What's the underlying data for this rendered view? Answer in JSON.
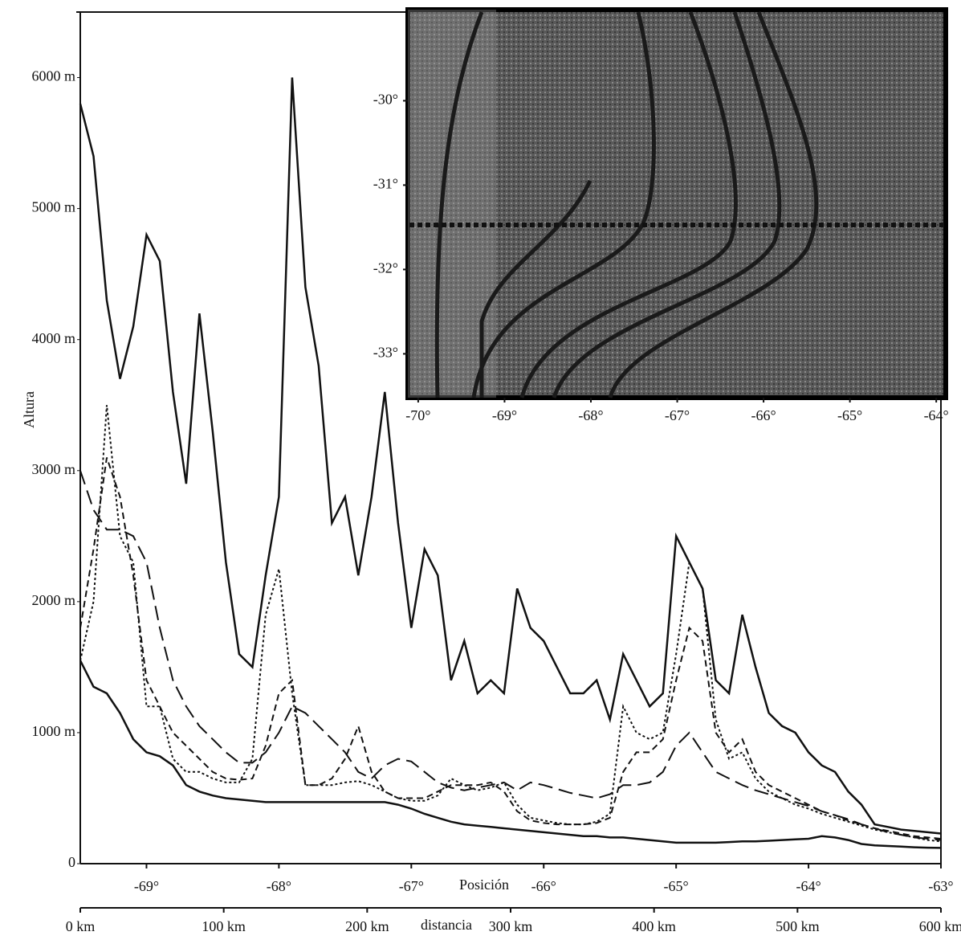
{
  "chart_data": {
    "type": "line",
    "y_label": "Altura",
    "x_label": "Posición",
    "x2_label": "distancia",
    "x": [
      -69.5,
      -69.4,
      -69.3,
      -69.2,
      -69.1,
      -69.0,
      -68.9,
      -68.8,
      -68.7,
      -68.6,
      -68.5,
      -68.4,
      -68.3,
      -68.2,
      -68.1,
      -68.0,
      -67.9,
      -67.8,
      -67.7,
      -67.6,
      -67.5,
      -67.4,
      -67.3,
      -67.2,
      -67.1,
      -67.0,
      -66.9,
      -66.8,
      -66.7,
      -66.6,
      -66.5,
      -66.4,
      -66.3,
      -66.2,
      -66.1,
      -66.0,
      -65.9,
      -65.8,
      -65.7,
      -65.6,
      -65.5,
      -65.4,
      -65.3,
      -65.2,
      -65.1,
      -65.0,
      -64.9,
      -64.8,
      -64.7,
      -64.6,
      -64.5,
      -64.4,
      -64.3,
      -64.2,
      -64.1,
      -64.0,
      -63.9,
      -63.8,
      -63.7,
      -63.6,
      -63.5,
      -63.4,
      -63.3,
      -63.2,
      -63.1,
      -63.0
    ],
    "series": [
      {
        "color": "#111111",
        "dash": "solid",
        "values": [
          5800,
          5400,
          4300,
          3700,
          4100,
          4800,
          4600,
          3600,
          2900,
          4200,
          3300,
          2300,
          1600,
          1500,
          2200,
          2800,
          6000,
          4400,
          3800,
          2600,
          2800,
          2200,
          2800,
          3600,
          2600,
          1800,
          2400,
          2200,
          1400,
          1700,
          1300,
          1400,
          1300,
          2100,
          1800,
          1700,
          1500,
          1300,
          1300,
          1400,
          1100,
          1600,
          1400,
          1200,
          1300,
          2500,
          2300,
          2100,
          1400,
          1300,
          1900,
          1500,
          1150,
          1050,
          1000,
          850,
          750,
          700,
          550,
          450,
          300,
          280,
          260,
          250,
          240,
          230
        ]
      },
      {
        "color": "#111111",
        "dash": "long-dash",
        "values": [
          3000,
          2700,
          2550,
          2550,
          2500,
          2300,
          1800,
          1400,
          1200,
          1050,
          950,
          850,
          770,
          770,
          850,
          1000,
          1200,
          1150,
          1050,
          950,
          850,
          700,
          650,
          750,
          800,
          780,
          700,
          620,
          580,
          560,
          580,
          600,
          620,
          560,
          620,
          600,
          570,
          540,
          520,
          500,
          530,
          600,
          600,
          620,
          700,
          900,
          1000,
          850,
          700,
          650,
          600,
          560,
          530,
          500,
          470,
          440,
          400,
          370,
          340,
          300,
          270,
          240,
          220,
          200,
          190,
          180
        ]
      },
      {
        "color": "#111111",
        "dash": "dash",
        "values": [
          1800,
          2400,
          3100,
          2800,
          2200,
          1400,
          1200,
          1000,
          900,
          800,
          700,
          650,
          640,
          650,
          900,
          1300,
          1400,
          600,
          600,
          650,
          800,
          1050,
          700,
          550,
          500,
          500,
          500,
          550,
          600,
          600,
          600,
          620,
          550,
          400,
          330,
          310,
          300,
          300,
          300,
          310,
          350,
          700,
          850,
          850,
          950,
          1400,
          1800,
          1700,
          1000,
          850,
          950,
          700,
          600,
          550,
          500,
          450,
          400,
          370,
          330,
          300,
          270,
          250,
          230,
          210,
          200,
          190
        ]
      },
      {
        "color": "#111111",
        "dash": "dot",
        "values": [
          1550,
          2000,
          3500,
          2500,
          2300,
          1200,
          1200,
          800,
          700,
          700,
          650,
          620,
          620,
          800,
          1900,
          2250,
          1300,
          600,
          600,
          600,
          620,
          630,
          600,
          550,
          500,
          480,
          480,
          520,
          650,
          600,
          560,
          580,
          620,
          450,
          350,
          330,
          310,
          300,
          300,
          320,
          380,
          1200,
          1000,
          950,
          1000,
          1600,
          2300,
          2100,
          1100,
          800,
          850,
          650,
          550,
          500,
          450,
          420,
          380,
          350,
          320,
          290,
          260,
          240,
          220,
          200,
          180,
          170
        ]
      },
      {
        "color": "#111111",
        "dash": "solid",
        "values": [
          1550,
          1350,
          1300,
          1150,
          950,
          850,
          820,
          750,
          600,
          550,
          520,
          500,
          490,
          480,
          470,
          470,
          470,
          470,
          470,
          470,
          470,
          470,
          470,
          470,
          450,
          420,
          380,
          350,
          320,
          300,
          290,
          280,
          270,
          260,
          250,
          240,
          230,
          220,
          210,
          210,
          200,
          200,
          190,
          180,
          170,
          160,
          160,
          160,
          160,
          165,
          170,
          170,
          175,
          180,
          185,
          190,
          210,
          200,
          180,
          150,
          140,
          135,
          130,
          125,
          122,
          120
        ]
      }
    ],
    "xlim": [
      -69.5,
      -63
    ],
    "xticks": [
      {
        "value": -69,
        "label": "-69°"
      },
      {
        "value": -68,
        "label": "-68°"
      },
      {
        "value": -67,
        "label": "-67°"
      },
      {
        "value": -66,
        "label": "-66°"
      },
      {
        "value": -65,
        "label": "-65°"
      },
      {
        "value": -64,
        "label": "-64°"
      },
      {
        "value": -63,
        "label": "-63°"
      }
    ],
    "x2lim": [
      0,
      600
    ],
    "x2ticks": [
      {
        "value": 0,
        "label": "0  km"
      },
      {
        "value": 100,
        "label": "100 km"
      },
      {
        "value": 200,
        "label": "200 km"
      },
      {
        "value": 300,
        "label": "300 km"
      },
      {
        "value": 400,
        "label": "400 km"
      },
      {
        "value": 500,
        "label": "500 km"
      },
      {
        "value": 600,
        "label": "600 km"
      }
    ],
    "ylim": [
      0,
      6500
    ],
    "yticks": [
      0,
      {
        "value": 1000,
        "label": "1000 m"
      },
      {
        "value": 2000,
        "label": "2000 m"
      },
      {
        "value": 3000,
        "label": "3000 m"
      },
      {
        "value": 4000,
        "label": "4000 m"
      },
      {
        "value": 5000,
        "label": "5000 m"
      },
      {
        "value": 6000,
        "label": "6000 m"
      }
    ],
    "inset": {
      "xlim": [
        -70.12,
        -63.89
      ],
      "ylim": [
        -33.52,
        -28.92
      ],
      "xticks": [
        {
          "value": -70,
          "label": "-70°"
        },
        {
          "value": -69,
          "label": "-69°"
        },
        {
          "value": -68,
          "label": "-68°"
        },
        {
          "value": -67,
          "label": "-67°"
        },
        {
          "value": -66,
          "label": "-66°"
        },
        {
          "value": -65,
          "label": "-65°"
        },
        {
          "value": -64,
          "label": "-64°"
        }
      ],
      "yticks": [
        {
          "value": -30,
          "label": "-30°"
        },
        {
          "value": -31,
          "label": "-31°"
        },
        {
          "value": -32,
          "label": "-32°"
        },
        {
          "value": -33,
          "label": "-33°"
        }
      ]
    }
  }
}
